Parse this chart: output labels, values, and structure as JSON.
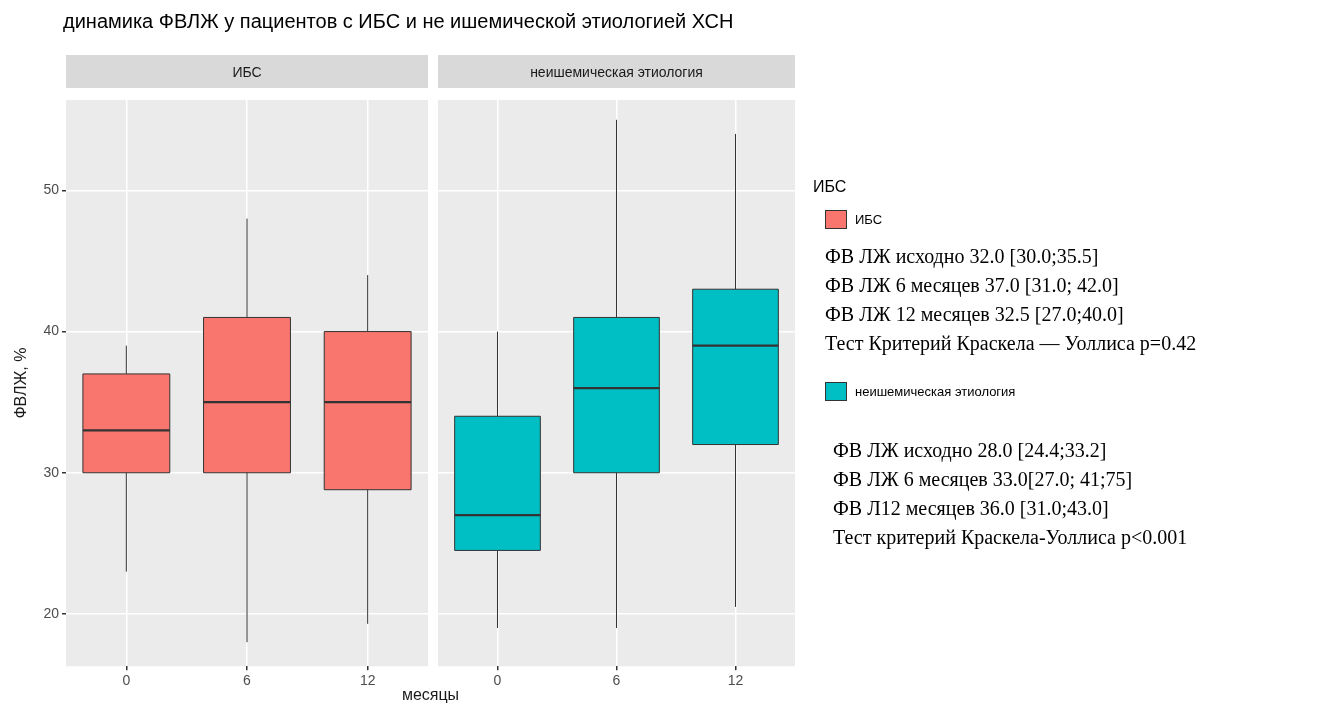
{
  "chart_data": [
    {
      "type": "box",
      "title": "динамика ФВЛЖ у пациентов с ИБС и не ишемической этиологией ХСН",
      "subtitle": "ИБС",
      "xlabel": "месяцы",
      "ylabel": "ФВЛЖ, %",
      "legend_title": "ИБС",
      "legend": "right",
      "grid": true,
      "categories": [
        "0",
        "6",
        "12"
      ],
      "ylim": [
        16.3,
        56.4
      ],
      "yticks": [
        20,
        30,
        40,
        50
      ],
      "series": [
        {
          "name": "ИБС",
          "color": "#f8766d",
          "boxes": [
            {
              "low": 23,
              "q1": 30,
              "median": 33,
              "q3": 37,
              "high": 39
            },
            {
              "low": 18,
              "q1": 30,
              "median": 35,
              "q3": 41,
              "high": 48
            },
            {
              "low": 19.3,
              "q1": 28.8,
              "median": 35,
              "q3": 40,
              "high": 44
            }
          ]
        }
      ],
      "annotations": [
        "ФВ ЛЖ исходно 32.0 [30.0;35.5]",
        "ФВ ЛЖ 6 месяцев 37.0 [31.0; 42.0]",
        "ФВ ЛЖ 12 месяцев 32.5 [27.0;40.0]",
        "Тест Критерий Краскела — Уоллиса p=0.42"
      ]
    },
    {
      "type": "box",
      "subtitle": "неишемическая этиология",
      "legend": "right",
      "grid": true,
      "tick_labels": "x",
      "categories": [
        "0",
        "6",
        "12"
      ],
      "ylim": [
        16.3,
        56.4
      ],
      "yticks": [
        20,
        30,
        40,
        50
      ],
      "series": [
        {
          "name": "неишемическая этиология",
          "color": "#00bfc4",
          "boxes": [
            {
              "low": 19,
              "q1": 24.5,
              "median": 27,
              "q3": 34,
              "high": 40
            },
            {
              "low": 19,
              "q1": 30,
              "median": 36,
              "q3": 41,
              "high": 55
            },
            {
              "low": 20.5,
              "q1": 32,
              "median": 39,
              "q3": 43,
              "high": 54
            }
          ]
        }
      ],
      "annotations": [
        "ФВ ЛЖ исходно 28.0 [24.4;33.2]",
        "ФВ ЛЖ 6 месяцев 33.0[27.0; 41;75]",
        "ФВ Л12 месяцев 36.0 [31.0;43.0]",
        "Тест критерий Краскела-Уоллиса p<0.001"
      ]
    }
  ]
}
